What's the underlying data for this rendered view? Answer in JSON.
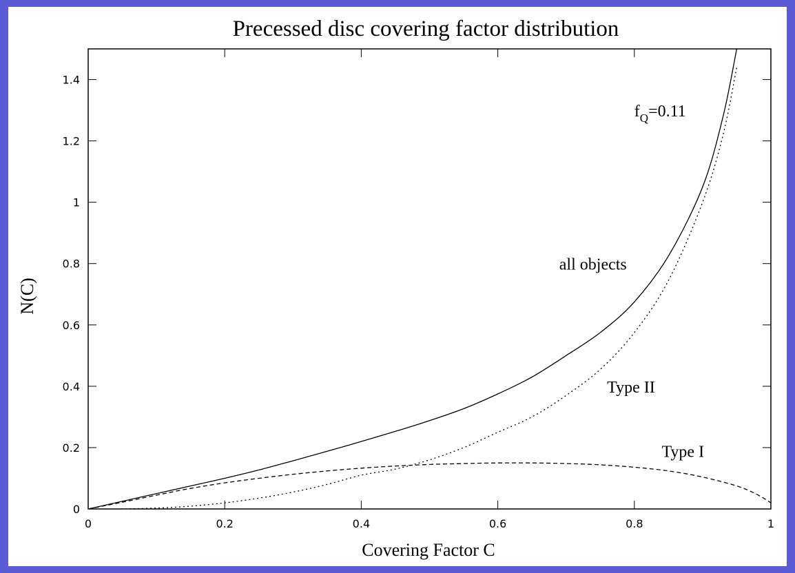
{
  "frame": {
    "background": "#5b5bd6",
    "panel": "#ffffff"
  },
  "chart_data": {
    "type": "line",
    "title": "Precessed disc covering factor distribution",
    "xlabel": "Covering Factor C",
    "ylabel": "N(C)",
    "xlim": [
      0,
      1
    ],
    "ylim": [
      0,
      1.5
    ],
    "xticks": [
      "0",
      "0.2",
      "0.4",
      "0.6",
      "0.8",
      "1"
    ],
    "yticks": [
      "0",
      "0.2",
      "0.4",
      "0.6",
      "0.8",
      "1",
      "1.2",
      "1.4"
    ],
    "grid": false,
    "legend": "none (curves labeled inline)",
    "x": [
      0,
      0.05,
      0.1,
      0.15,
      0.2,
      0.25,
      0.3,
      0.35,
      0.4,
      0.45,
      0.5,
      0.55,
      0.6,
      0.65,
      0.7,
      0.75,
      0.8,
      0.85,
      0.9,
      0.93,
      0.95
    ],
    "series": [
      {
        "name": "all objects",
        "style": "solid",
        "values": [
          0,
          0.025,
          0.05,
          0.075,
          0.1,
          0.127,
          0.157,
          0.188,
          0.22,
          0.253,
          0.288,
          0.327,
          0.375,
          0.43,
          0.5,
          0.575,
          0.675,
          0.825,
          1.05,
          1.28,
          1.5
        ]
      },
      {
        "name": "Type II",
        "style": "dotted",
        "values": [
          0,
          0,
          0.003,
          0.009,
          0.02,
          0.035,
          0.055,
          0.08,
          0.11,
          0.13,
          0.16,
          0.2,
          0.25,
          0.3,
          0.37,
          0.455,
          0.575,
          0.745,
          1.0,
          1.22,
          1.44
        ]
      },
      {
        "name": "Type I",
        "style": "dashed",
        "x": [
          0,
          0.05,
          0.1,
          0.15,
          0.2,
          0.25,
          0.3,
          0.35,
          0.4,
          0.45,
          0.5,
          0.55,
          0.6,
          0.65,
          0.7,
          0.75,
          0.8,
          0.85,
          0.9,
          0.95,
          0.98,
          1.0
        ],
        "values": [
          0,
          0.022,
          0.045,
          0.067,
          0.085,
          0.1,
          0.113,
          0.124,
          0.133,
          0.14,
          0.145,
          0.148,
          0.15,
          0.15,
          0.148,
          0.144,
          0.136,
          0.124,
          0.104,
          0.075,
          0.047,
          0.02
        ]
      }
    ],
    "annotations": [
      {
        "text_main": "f",
        "text_sub": "Q",
        "text_rest": "=0.11",
        "x": 0.8,
        "y": 1.28
      },
      {
        "text": "all objects",
        "x": 0.69,
        "y": 0.78
      },
      {
        "text": "Type II",
        "x": 0.76,
        "y": 0.38
      },
      {
        "text": "Type I",
        "x": 0.84,
        "y": 0.17
      }
    ]
  }
}
